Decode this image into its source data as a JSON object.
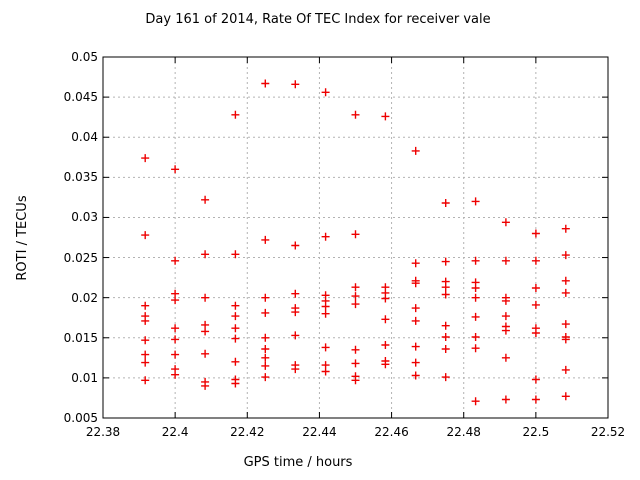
{
  "title": "Day 161 of 2014, Rate Of TEC Index for receiver vale",
  "colors": {
    "marker": "#ee0000",
    "grid": "#b3b3b3",
    "axis": "#000000",
    "background": "#ffffff",
    "text": "#000000"
  },
  "chart_data": {
    "type": "scatter",
    "title": "Day 161 of 2014, Rate Of TEC Index for receiver vale",
    "xlabel": "GPS time / hours",
    "ylabel": "ROTI / TECUs",
    "xlim": [
      22.38,
      22.52
    ],
    "ylim": [
      0.005,
      0.05
    ],
    "xticks": [
      22.38,
      22.4,
      22.42,
      22.44,
      22.46,
      22.48,
      22.5,
      22.52
    ],
    "xtick_labels": [
      "22.38",
      "22.4",
      "22.42",
      "22.44",
      "22.46",
      "22.48",
      "22.5",
      "22.52"
    ],
    "yticks": [
      0.005,
      0.01,
      0.015,
      0.02,
      0.025,
      0.03,
      0.035,
      0.04,
      0.045,
      0.05
    ],
    "ytick_labels": [
      "0.005",
      "0.01",
      "0.015",
      "0.02",
      "0.025",
      "0.03",
      "0.035",
      "0.04",
      "0.045",
      "0.05"
    ],
    "grid": true,
    "legend": "none",
    "marker": "plus",
    "epochs": [
      {
        "t": 22.3917,
        "roti": [
          0.0374,
          0.0278,
          0.019,
          0.0177,
          0.0171,
          0.0147,
          0.0129,
          0.0119,
          0.0097
        ]
      },
      {
        "t": 22.4,
        "roti": [
          0.036,
          0.0246,
          0.0205,
          0.0197,
          0.0162,
          0.0148,
          0.0129,
          0.0111,
          0.0104
        ]
      },
      {
        "t": 22.4083,
        "roti": [
          0.0322,
          0.0254,
          0.02,
          0.0166,
          0.0158,
          0.013,
          0.0095,
          0.009
        ]
      },
      {
        "t": 22.4167,
        "roti": [
          0.0428,
          0.0254,
          0.019,
          0.0177,
          0.0162,
          0.0149,
          0.012,
          0.0098,
          0.0093
        ]
      },
      {
        "t": 22.425,
        "roti": [
          0.0467,
          0.0272,
          0.02,
          0.0181,
          0.015,
          0.0136,
          0.0125,
          0.0115,
          0.0101
        ]
      },
      {
        "t": 22.4333,
        "roti": [
          0.0466,
          0.0265,
          0.0205,
          0.0187,
          0.0182,
          0.0153,
          0.0116,
          0.0111
        ]
      },
      {
        "t": 22.4417,
        "roti": [
          0.0456,
          0.0276,
          0.0203,
          0.0196,
          0.0189,
          0.018,
          0.0138,
          0.0116,
          0.0108
        ]
      },
      {
        "t": 22.45,
        "roti": [
          0.0428,
          0.0279,
          0.0213,
          0.0202,
          0.0192,
          0.0135,
          0.0118,
          0.0102,
          0.0097
        ]
      },
      {
        "t": 22.4583,
        "roti": [
          0.0426,
          0.0213,
          0.0206,
          0.0199,
          0.0173,
          0.0141,
          0.0121,
          0.0117
        ]
      },
      {
        "t": 22.4667,
        "roti": [
          0.0383,
          0.0243,
          0.0221,
          0.0218,
          0.0187,
          0.0171,
          0.0139,
          0.0119,
          0.0103
        ]
      },
      {
        "t": 22.475,
        "roti": [
          0.0318,
          0.0245,
          0.022,
          0.0213,
          0.0204,
          0.0165,
          0.0151,
          0.0136,
          0.0101
        ]
      },
      {
        "t": 22.4833,
        "roti": [
          0.032,
          0.0246,
          0.0219,
          0.0212,
          0.02,
          0.0176,
          0.0151,
          0.0137,
          0.0071
        ]
      },
      {
        "t": 22.4917,
        "roti": [
          0.0294,
          0.0246,
          0.02,
          0.0196,
          0.0177,
          0.0164,
          0.0159,
          0.0125,
          0.0073
        ]
      },
      {
        "t": 22.5,
        "roti": [
          0.028,
          0.0246,
          0.0212,
          0.0191,
          0.0162,
          0.0156,
          0.0098,
          0.0073
        ]
      },
      {
        "t": 22.5083,
        "roti": [
          0.0286,
          0.0253,
          0.0221,
          0.0206,
          0.0167,
          0.0151,
          0.0148,
          0.011,
          0.0077
        ]
      }
    ]
  }
}
